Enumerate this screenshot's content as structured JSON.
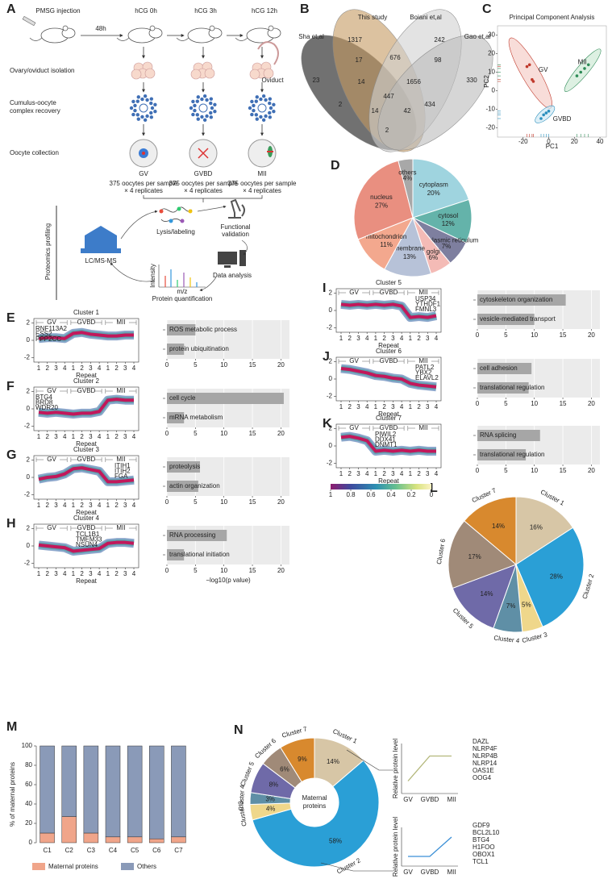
{
  "panel_labels": [
    "A",
    "B",
    "C",
    "D",
    "E",
    "F",
    "G",
    "H",
    "I",
    "J",
    "K",
    "L",
    "M",
    "N"
  ],
  "workflow": {
    "injection": "PMSG injection",
    "interval": "48h",
    "hcg_times": [
      "hCG 0h",
      "hCG 3h",
      "hCG 12h"
    ],
    "steps": [
      "Ovary/oviduct isolation",
      "Cumulus-oocyte",
      "complex recovery",
      "Oocyte collection"
    ],
    "oviduct": "Oviduct",
    "stages": [
      "GV",
      "GVBD",
      "MII"
    ],
    "sample_lines": [
      [
        "375 oocytes per sample",
        "× 4 replicates"
      ],
      [
        "375 oocytes per sample",
        "× 4 replicates"
      ],
      [
        "375 oocytes per sample",
        "× 4 replicates"
      ]
    ],
    "profiling": "Proteomics profiling",
    "lysis": "Lysis/labeling",
    "validation": [
      "Functional",
      "validation"
    ],
    "lcms": "LC/MS-MS",
    "analysis": "Data analysis",
    "intensity": "Intensity",
    "mz": "m/z",
    "quantification": "Protein quantification"
  },
  "venn": {
    "sets": [
      {
        "name": "Sha et,al",
        "color": "#4d4d4d"
      },
      {
        "name": "This study",
        "color": "#c49a60"
      },
      {
        "name": "Boiani et,al",
        "color": "#d0d0d0"
      },
      {
        "name": "Gao et,al",
        "color": "#bbbbbb"
      }
    ],
    "counts": [
      1317,
      242,
      23,
      17,
      676,
      98,
      330,
      14,
      1656,
      447,
      2,
      434,
      14,
      42,
      2
    ]
  },
  "colorbar": {
    "ticks": [
      1,
      0.8,
      0.6,
      0.4,
      0.2,
      0
    ]
  },
  "chart_data": [
    {
      "type": "scatter",
      "title": "Principal Component Analysis",
      "xlabel": "PC1",
      "ylabel": "PC2",
      "xlim": [
        -40,
        45
      ],
      "xticks": [
        -20,
        0,
        20,
        40
      ],
      "ylim": [
        -25,
        35
      ],
      "yticks": [
        -20,
        -10,
        0,
        10,
        20,
        30
      ],
      "series": [
        {
          "name": "GV",
          "color": "#c0392b",
          "x": [
            -17,
            -15,
            -13,
            -12
          ],
          "values": [
            13,
            14,
            6,
            5
          ]
        },
        {
          "name": "GVBD",
          "color": "#2a8fbd",
          "x": [
            -6,
            -4,
            -2,
            0
          ],
          "values": [
            -15,
            -13,
            -12,
            -11
          ]
        },
        {
          "name": "MII",
          "color": "#2e8b57",
          "x": [
            22,
            25,
            28,
            31
          ],
          "values": [
            8,
            10,
            12,
            14
          ]
        }
      ]
    },
    {
      "type": "pie",
      "categories": [
        "cytoplasm",
        "cytosol",
        "endoplasmic reticulum",
        "golgi",
        "membrane",
        "mitochondrion",
        "nucleus",
        "others"
      ],
      "values": [
        20,
        12,
        7,
        6,
        13,
        11,
        27,
        4
      ],
      "value_labels": [
        "20%",
        "12%",
        "7%",
        "6%",
        "13%",
        "11%",
        "27%",
        "4%"
      ],
      "colors": [
        "#9fd4df",
        "#64b3aa",
        "#7e7f9f",
        "#f4bbb6",
        "#b7c2d8",
        "#f3a88e",
        "#e98f80",
        "#a8a8a8"
      ]
    },
    {
      "type": "line",
      "title": "Cluster 1",
      "groups": [
        "GV",
        "GVBD",
        "MII"
      ],
      "categories": [
        "1",
        "2",
        "3",
        "4",
        "1",
        "2",
        "3",
        "4",
        "1",
        "2",
        "3",
        "4"
      ],
      "xlabel": "Repeat",
      "genes": [
        "RNF113A2",
        "ESS2",
        "PPP2CC"
      ],
      "ylim": [
        -2.5,
        2.5
      ],
      "yticks": [
        -2,
        0,
        2
      ],
      "color": "#c2185b",
      "values": [
        0.2,
        0.3,
        0.3,
        0.2,
        0.8,
        0.9,
        0.7,
        0.6,
        0.5,
        0.5,
        0.6,
        0.6
      ]
    },
    {
      "type": "line",
      "title": "Cluster 2",
      "groups": [
        "GV",
        "GVBD",
        "MII"
      ],
      "categories": [
        "1",
        "2",
        "3",
        "4",
        "1",
        "2",
        "3",
        "4",
        "1",
        "2",
        "3",
        "4"
      ],
      "xlabel": "Repeat",
      "genes": [
        "BTG4",
        "BRD8",
        "WDR20"
      ],
      "ylim": [
        -2.5,
        2.5
      ],
      "yticks": [
        -2,
        0,
        2
      ],
      "color": "#c2185b",
      "values": [
        -0.4,
        -0.5,
        -0.4,
        -0.5,
        -0.6,
        -0.5,
        -0.5,
        -0.3,
        1.0,
        1.1,
        1.0,
        1.0
      ]
    },
    {
      "type": "line",
      "title": "Cluster 3",
      "groups": [
        "GV",
        "GVBD",
        "MII"
      ],
      "categories": [
        "1",
        "2",
        "3",
        "4",
        "1",
        "2",
        "3",
        "4",
        "1",
        "2",
        "3",
        "4"
      ],
      "xlabel": "Repeat",
      "genes": [
        "ITIH1",
        "ITIH2",
        "FGA"
      ],
      "ylim": [
        -2.5,
        2.5
      ],
      "yticks": [
        -2,
        0,
        2
      ],
      "color": "#c2185b",
      "values": [
        -0.2,
        0,
        0.1,
        0.4,
        1.0,
        1.1,
        0.9,
        0.7,
        -0.5,
        -0.5,
        -0.4,
        -0.3
      ]
    },
    {
      "type": "line",
      "title": "Cluster 4",
      "groups": [
        "GV",
        "GVBD",
        "MII"
      ],
      "categories": [
        "1",
        "2",
        "3",
        "4",
        "1",
        "2",
        "3",
        "4",
        "1",
        "2",
        "3",
        "4"
      ],
      "xlabel": "Repeat",
      "genes": [
        "TCL1B1",
        "TMEM33",
        "NSUN4"
      ],
      "ylim": [
        -2.5,
        2.5
      ],
      "yticks": [
        -2,
        0,
        2
      ],
      "color": "#c2185b",
      "values": [
        0.1,
        0,
        -0.1,
        -0.2,
        -0.6,
        -0.5,
        -0.4,
        -0.3,
        0.3,
        0.4,
        0.4,
        0.3
      ]
    },
    {
      "type": "line",
      "title": "Cluster 5",
      "groups": [
        "GV",
        "GVBD",
        "MII"
      ],
      "categories": [
        "1",
        "2",
        "3",
        "4",
        "1",
        "2",
        "3",
        "4",
        "1",
        "2",
        "3",
        "4"
      ],
      "xlabel": "Repeat",
      "genes": [
        "USP34",
        "YTHDF1",
        "FMNL3"
      ],
      "ylim": [
        -2.5,
        2.5
      ],
      "yticks": [
        -2,
        0,
        2
      ],
      "color": "#c2185b",
      "values": [
        0.7,
        0.6,
        0.7,
        0.6,
        0.7,
        0.6,
        0.7,
        0.5,
        -0.8,
        -0.7,
        -0.8,
        -0.6
      ]
    },
    {
      "type": "line",
      "title": "Cluster 6",
      "groups": [
        "GV",
        "GVBD",
        "MII"
      ],
      "categories": [
        "1",
        "2",
        "3",
        "4",
        "1",
        "2",
        "3",
        "4",
        "1",
        "2",
        "3",
        "4"
      ],
      "xlabel": "Repeat",
      "genes": [
        "PATL2",
        "YBX2",
        "ELAVL2"
      ],
      "ylim": [
        -2.5,
        2.5
      ],
      "yticks": [
        -2,
        0,
        2
      ],
      "color": "#c2185b",
      "values": [
        1.2,
        1.1,
        0.9,
        0.7,
        0.4,
        0.3,
        0.1,
        0,
        -0.5,
        -0.7,
        -0.8,
        -0.9
      ]
    },
    {
      "type": "line",
      "title": "Cluster 7",
      "groups": [
        "GV",
        "GVBD",
        "MII"
      ],
      "categories": [
        "1",
        "2",
        "3",
        "4",
        "1",
        "2",
        "3",
        "4",
        "1",
        "2",
        "3",
        "4"
      ],
      "xlabel": "Repeat",
      "genes": [
        "PIWIL2",
        "DDX41",
        "DNMT1"
      ],
      "ylim": [
        -2.5,
        2.5
      ],
      "yticks": [
        -2,
        0,
        2
      ],
      "color": "#c2185b",
      "values": [
        1.0,
        1.1,
        0.9,
        0.6,
        -0.6,
        -0.5,
        -0.6,
        -0.5,
        -0.6,
        -0.5,
        -0.6,
        -0.6
      ]
    },
    {
      "type": "hbar",
      "categories": [
        "ROS metabolic process",
        "protein ubiquitination"
      ],
      "values": [
        5,
        3
      ],
      "xlim": [
        0,
        21.5
      ],
      "xticks": [
        0,
        5,
        10,
        15,
        20
      ],
      "color": "#a6a6a6"
    },
    {
      "type": "hbar",
      "categories": [
        "cell cycle",
        "mRNA metabolism"
      ],
      "values": [
        20.5,
        3
      ],
      "xlim": [
        0,
        21.5
      ],
      "xticks": [
        0,
        5,
        10,
        15,
        20
      ],
      "color": "#a6a6a6"
    },
    {
      "type": "hbar",
      "categories": [
        "proteolysis",
        "actin organization"
      ],
      "values": [
        5.8,
        5.5
      ],
      "xlim": [
        0,
        21.5
      ],
      "xticks": [
        0,
        5,
        10,
        15,
        20
      ],
      "color": "#a6a6a6"
    },
    {
      "type": "hbar",
      "categories": [
        "RNA processing",
        "translational initiation"
      ],
      "values": [
        10.5,
        3
      ],
      "xlim": [
        0,
        21.5
      ],
      "xticks": [
        0,
        5,
        10,
        15,
        20
      ],
      "color": "#a6a6a6",
      "xlabel": "−log10(p value)"
    },
    {
      "type": "hbar",
      "categories": [
        "cytoskeleton organization",
        "vesicle-mediated transport"
      ],
      "values": [
        15.5,
        10
      ],
      "xlim": [
        0,
        21.5
      ],
      "xticks": [
        0,
        5,
        10,
        15,
        20
      ],
      "color": "#a6a6a6"
    },
    {
      "type": "hbar",
      "categories": [
        "cell adhesion",
        "translational regulation"
      ],
      "values": [
        9.5,
        9
      ],
      "xlim": [
        0,
        21.5
      ],
      "xticks": [
        0,
        5,
        10,
        15,
        20
      ],
      "color": "#a6a6a6"
    },
    {
      "type": "hbar",
      "categories": [
        "RNA splicing",
        "translational regulation"
      ],
      "values": [
        11,
        8.5
      ],
      "xlim": [
        0,
        21.5
      ],
      "xticks": [
        0,
        5,
        10,
        15,
        20
      ],
      "color": "#a6a6a6"
    },
    {
      "type": "pie",
      "categories": [
        "Cluster 1",
        "Cluster 2",
        "Cluster 3",
        "Cluster 4",
        "Cluster 5",
        "Cluster 6",
        "Cluster 7"
      ],
      "values": [
        16,
        28,
        5,
        7,
        14,
        17,
        14
      ],
      "value_labels": [
        "16%",
        "28%",
        "5%",
        "7%",
        "14%",
        "17%",
        "14%"
      ],
      "colors": [
        "#d7c6a6",
        "#2a9fd6",
        "#efd78b",
        "#5f8fa6",
        "#6f6aa8",
        "#a08a78",
        "#d8892e"
      ]
    },
    {
      "type": "stacked_bar",
      "ylabel": "% of maternal proteins",
      "categories": [
        "C1",
        "C2",
        "C3",
        "C4",
        "C5",
        "C6",
        "C7"
      ],
      "ylim": [
        0,
        100
      ],
      "yticks": [
        0,
        20,
        40,
        60,
        80,
        100
      ],
      "series": [
        {
          "name": "Maternal proteins",
          "color": "#f0a58a",
          "values": [
            10,
            27,
            10,
            6,
            6,
            4,
            6
          ]
        },
        {
          "name": "Others",
          "color": "#8a9ab8",
          "values": [
            90,
            73,
            90,
            94,
            94,
            96,
            94
          ]
        }
      ]
    },
    {
      "type": "donut",
      "center_label": [
        "Maternal",
        "proteins"
      ],
      "categories": [
        "Cluster 1",
        "Cluster 2",
        "Cluster 3",
        "Cluster 4",
        "Cluster 5",
        "Cluster 6",
        "Cluster 7"
      ],
      "values": [
        14,
        58,
        4,
        3,
        8,
        6,
        9
      ],
      "value_labels": [
        "14%",
        "58%",
        "4%",
        "3%",
        "8%",
        "6%",
        "9%"
      ],
      "colors": [
        "#d7c6a6",
        "#2a9fd6",
        "#efd78b",
        "#5f8fa6",
        "#6f6aa8",
        "#a08a78",
        "#d8892e"
      ]
    },
    {
      "type": "line",
      "ylabel": "Relative protein level",
      "categories": [
        "GV",
        "GVBD",
        "MII"
      ],
      "ylim": [
        0,
        1
      ],
      "values": [
        0.25,
        0.75,
        0.75
      ],
      "color": "#b3b77a",
      "genes": [
        "DAZL",
        "NLRP4F",
        "NLRP4B",
        "NLRP14",
        "OAS1E",
        "OOG4"
      ]
    },
    {
      "type": "line",
      "ylabel": "Relative protein level",
      "categories": [
        "GV",
        "GVBD",
        "MII"
      ],
      "ylim": [
        0,
        1
      ],
      "values": [
        0.25,
        0.25,
        0.75
      ],
      "color": "#3b8fd6",
      "genes": [
        "GDF9",
        "BCL2L10",
        "BTG4",
        "H1FOO",
        "OBOX1",
        "TCL1"
      ]
    }
  ]
}
